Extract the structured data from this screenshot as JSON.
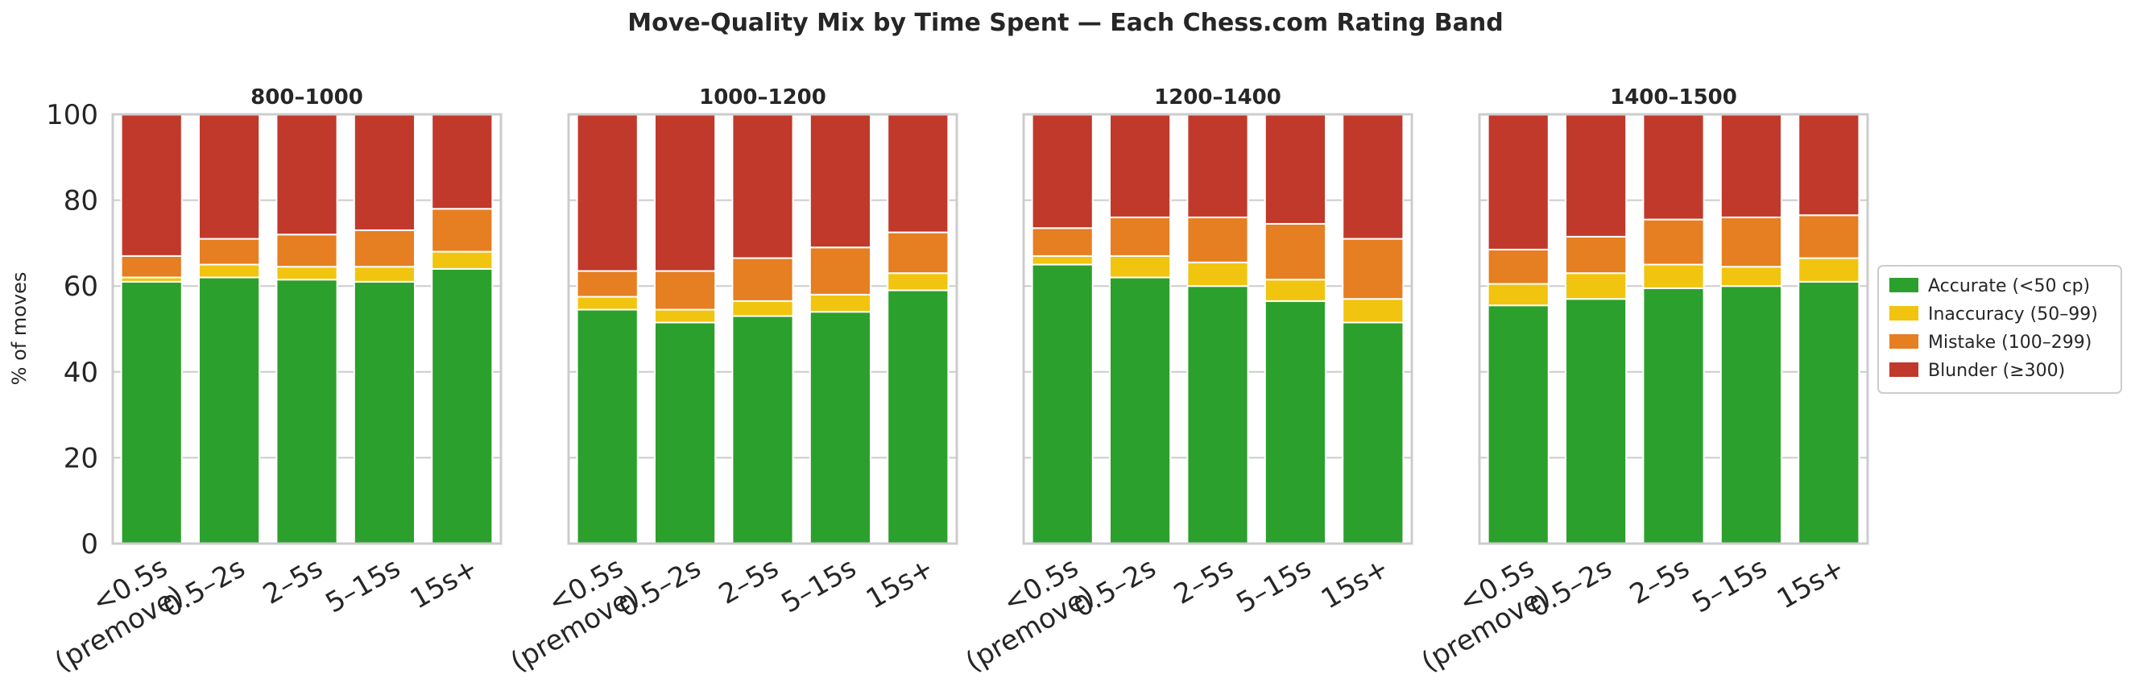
{
  "figure": {
    "title": "Move-Quality Mix by Time Spent — Each Chess.com Rating Band"
  },
  "chart_data": {
    "type": "bar",
    "stacked": true,
    "ylabel": "% of moves",
    "ylim": [
      0,
      100
    ],
    "yticks": [
      0,
      20,
      40,
      60,
      80,
      100
    ],
    "grid": true,
    "legend_position": "right",
    "categories": [
      "<0.5s\n(premove)",
      "0.5–2s",
      "2–5s",
      "5–15s",
      "15s+"
    ],
    "series_meta": [
      {
        "key": "accurate",
        "name": "Accurate (<50 cp)",
        "color": "#2ca02c"
      },
      {
        "key": "inaccuracy",
        "name": "Inaccuracy (50–99)",
        "color": "#f1c40f"
      },
      {
        "key": "mistake",
        "name": "Mistake (100–299)",
        "color": "#e67e22"
      },
      {
        "key": "blunder",
        "name": "Blunder (≥300)",
        "color": "#c0392b"
      }
    ],
    "panels": [
      {
        "title": "800–1000",
        "series": [
          {
            "name": "Accurate (<50 cp)",
            "values": [
              61,
              62,
              61.5,
              61,
              64
            ]
          },
          {
            "name": "Inaccuracy (50–99)",
            "values": [
              1,
              3,
              3,
              3.5,
              4
            ]
          },
          {
            "name": "Mistake (100–299)",
            "values": [
              5,
              6,
              7.5,
              8.5,
              10
            ]
          },
          {
            "name": "Blunder (≥300)",
            "values": [
              33,
              29,
              28,
              27,
              22
            ]
          }
        ]
      },
      {
        "title": "1000–1200",
        "series": [
          {
            "name": "Accurate (<50 cp)",
            "values": [
              54.5,
              51.5,
              53,
              54,
              59
            ]
          },
          {
            "name": "Inaccuracy (50–99)",
            "values": [
              3,
              3,
              3.5,
              4,
              4
            ]
          },
          {
            "name": "Mistake (100–299)",
            "values": [
              6,
              9,
              10,
              11,
              9.5
            ]
          },
          {
            "name": "Blunder (≥300)",
            "values": [
              36.5,
              36.5,
              33.5,
              31,
              27.5
            ]
          }
        ]
      },
      {
        "title": "1200–1400",
        "series": [
          {
            "name": "Accurate (<50 cp)",
            "values": [
              65,
              62,
              60,
              56.5,
              51.5
            ]
          },
          {
            "name": "Inaccuracy (50–99)",
            "values": [
              2,
              5,
              5.5,
              5,
              5.5
            ]
          },
          {
            "name": "Mistake (100–299)",
            "values": [
              6.5,
              9,
              10.5,
              13,
              14
            ]
          },
          {
            "name": "Blunder (≥300)",
            "values": [
              26.5,
              24,
              24,
              25.5,
              29
            ]
          }
        ]
      },
      {
        "title": "1400–1500",
        "series": [
          {
            "name": "Accurate (<50 cp)",
            "values": [
              55.5,
              57,
              59.5,
              60,
              61
            ]
          },
          {
            "name": "Inaccuracy (50–99)",
            "values": [
              5,
              6,
              5.5,
              4.5,
              5.5
            ]
          },
          {
            "name": "Mistake (100–299)",
            "values": [
              8,
              8.5,
              10.5,
              11.5,
              10
            ]
          },
          {
            "name": "Blunder (≥300)",
            "values": [
              31.5,
              28.5,
              24.5,
              24,
              23.5
            ]
          }
        ]
      }
    ]
  }
}
